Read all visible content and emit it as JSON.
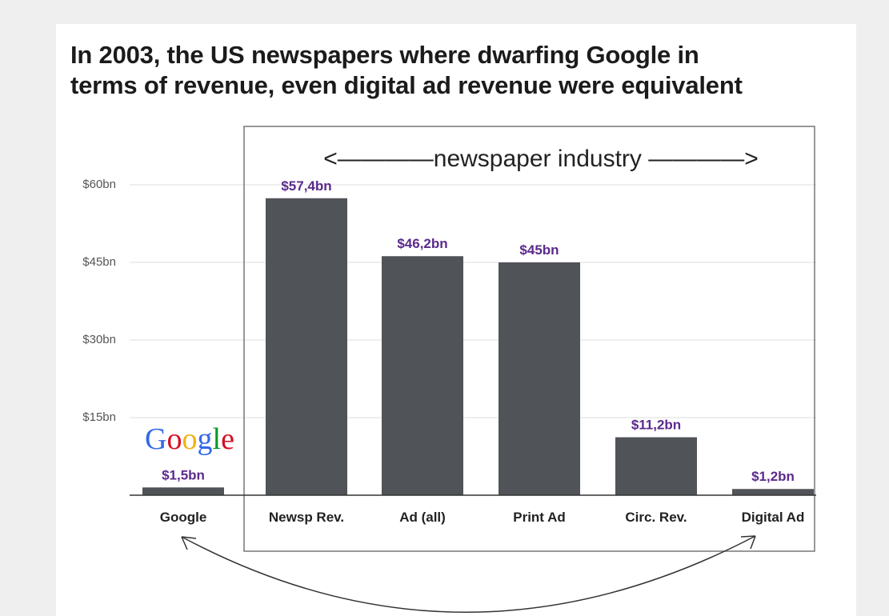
{
  "title_lines": [
    "In 2003, the US newspapers where dwarfing Google in",
    "terms of revenue, even digital ad revenue were equivalent"
  ],
  "group_label": "<————newspaper industry ————>",
  "logo": {
    "text": "Google",
    "letter_colors": [
      "#3369e8",
      "#d50f25",
      "#eeb211",
      "#3369e8",
      "#009925",
      "#d50f25"
    ]
  },
  "colors": {
    "bar": "#505357",
    "value_label": "#5b2a8c",
    "grid": "#dddddd",
    "baseline": "#333333",
    "group_frame": "#777777",
    "arrow": "#333333"
  },
  "chart_data": {
    "type": "bar",
    "title": "In 2003, the US newspapers where dwarfing Google in terms of revenue, even digital ad revenue were equivalent",
    "categories": [
      "Google",
      "Newsp Rev.",
      "Ad (all)",
      "Print Ad",
      "Circ. Rev.",
      "Digital Ad"
    ],
    "values": [
      1.5,
      57.4,
      46.2,
      45,
      11.2,
      1.2
    ],
    "value_labels": [
      "$1,5bn",
      "$57,4bn",
      "$46,2bn",
      "$45bn",
      "$11,2bn",
      "$1,2bn"
    ],
    "yticks": [
      15,
      30,
      45,
      60
    ],
    "ytick_labels": [
      "$15bn",
      "$30bn",
      "$45bn",
      "$60bn"
    ],
    "ylim": [
      0,
      60
    ],
    "grid": true,
    "xlabel": "",
    "ylabel": ""
  }
}
